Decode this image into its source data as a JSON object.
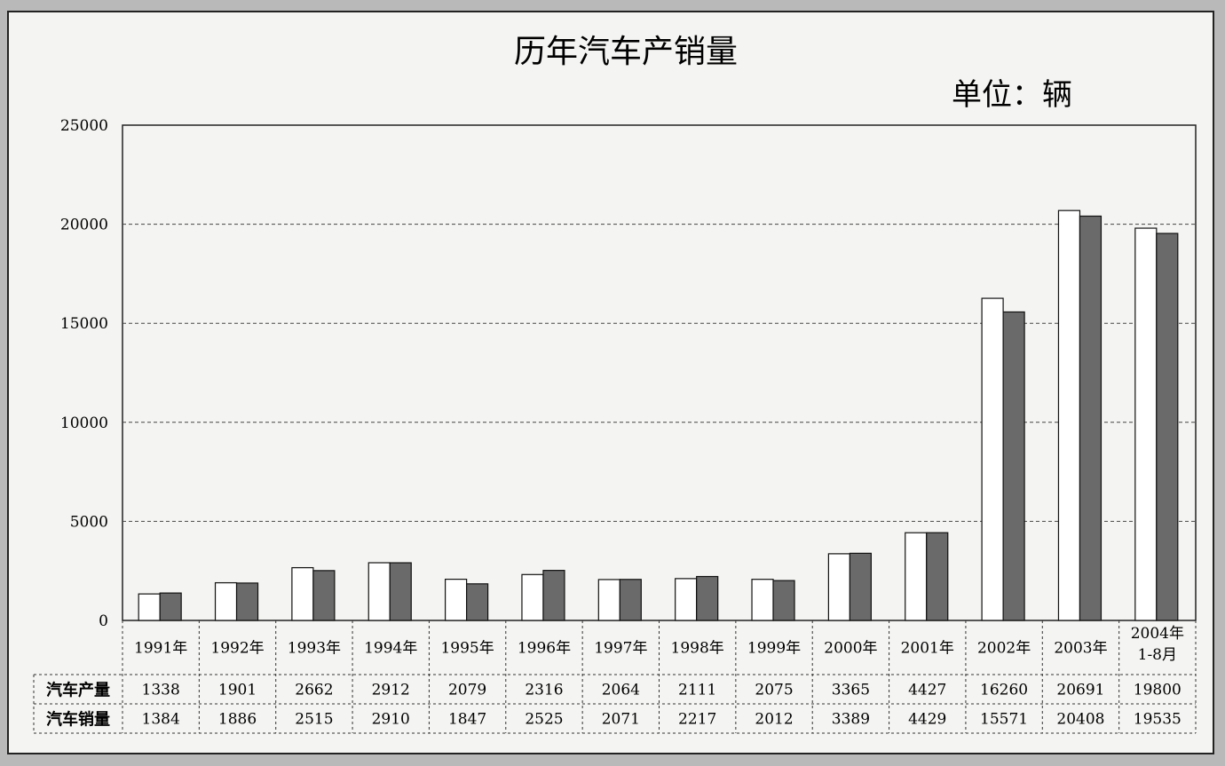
{
  "chart_data": {
    "type": "bar",
    "title": "历年汽车产销量",
    "unit_label": "单位：辆",
    "categories": [
      "1991年",
      "1992年",
      "1993年",
      "1994年",
      "1995年",
      "1996年",
      "1997年",
      "1998年",
      "1999年",
      "2000年",
      "2001年",
      "2002年",
      "2003年",
      "2004年 1-8月"
    ],
    "series": [
      {
        "name": "汽车产量",
        "color": "#ffffff",
        "values": [
          1338,
          1901,
          2662,
          2912,
          2079,
          2316,
          2064,
          2111,
          2075,
          3365,
          4427,
          16260,
          20691,
          19800
        ]
      },
      {
        "name": "汽车销量",
        "color": "#6a6a6a",
        "values": [
          1384,
          1886,
          2515,
          2910,
          1847,
          2525,
          2071,
          2217,
          2012,
          3389,
          4429,
          15571,
          20408,
          19535
        ]
      }
    ],
    "yticks": [
      0,
      5000,
      10000,
      15000,
      20000,
      25000
    ],
    "ylim": [
      0,
      25000
    ],
    "grid": true,
    "legend": "data-table-below"
  }
}
